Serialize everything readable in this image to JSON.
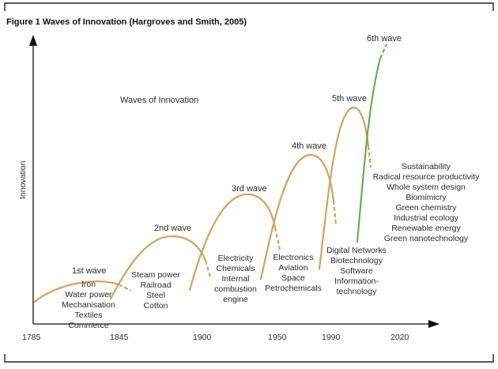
{
  "title": "Figure 1 Waves of Innovation (Hargroves and Smith, 2005)",
  "center_title": "Waves of Innovation",
  "y_axis_label": "Innovation",
  "x_ticks": [
    "1785",
    "1845",
    "1900",
    "1950",
    "1990",
    "2020"
  ],
  "waves": [
    {
      "label": "1st wave",
      "items": [
        "Iron",
        "Water power",
        "Mechanisation",
        "Textiles",
        "Commerce"
      ]
    },
    {
      "label": "2nd wave",
      "items": [
        "Steam power",
        "Railroad",
        "Steel",
        "Cotton"
      ]
    },
    {
      "label": "3rd wave",
      "items": [
        "Electricity",
        "Chemicals",
        "Internal",
        "combustion",
        "engine"
      ]
    },
    {
      "label": "4th wave",
      "items": [
        "Electronics",
        "Aviation",
        "Space",
        "Petrochemicals"
      ]
    },
    {
      "label": "5th wave",
      "items": [
        "Digital Networks",
        "Biotechnology",
        "Software",
        "Information-",
        "technology"
      ]
    },
    {
      "label": "6th wave",
      "items": [
        "Sustainability",
        "Radical resource productivity",
        "Whole system design",
        "Biomimicry",
        "Green chemistry",
        "Industrial ecology",
        "Renewable energy",
        "Green nanotechnology"
      ]
    }
  ],
  "colors": {
    "wave": "#d1a262",
    "sixth_wave": "#5ea64a",
    "axis": "#111111"
  }
}
